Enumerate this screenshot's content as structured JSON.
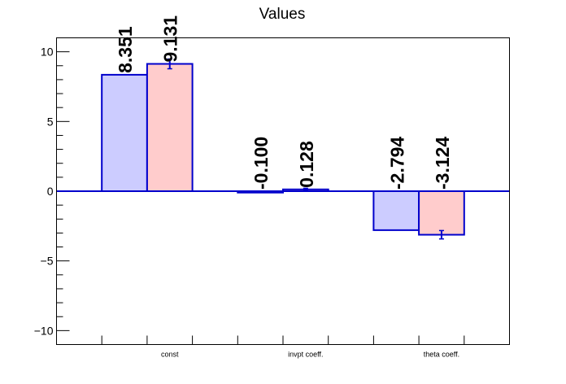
{
  "chart_data": {
    "type": "bar",
    "title": "Values",
    "categories": [
      "const",
      "invpt coeff.",
      "theta coeff."
    ],
    "series": [
      {
        "color": "#ccccff",
        "values": [
          8.351,
          -0.1,
          -2.794
        ],
        "labels": [
          "8.351",
          "-0.100",
          "-2.794"
        ],
        "errors": [
          0,
          0,
          0
        ]
      },
      {
        "color": "#ffcccc",
        "values": [
          9.131,
          0.128,
          -3.124
        ],
        "labels": [
          "9.131",
          "0.128",
          "-3.124"
        ],
        "errors": [
          0.35,
          0.08,
          0.3
        ]
      }
    ],
    "ylim": [
      -11,
      11
    ],
    "yticks": [
      10,
      5,
      0,
      -5,
      -10
    ],
    "ytick_labels": [
      "10",
      "5",
      "0",
      "−5",
      "−10"
    ],
    "bar_edge_color": "#0000cc",
    "grid": false
  }
}
